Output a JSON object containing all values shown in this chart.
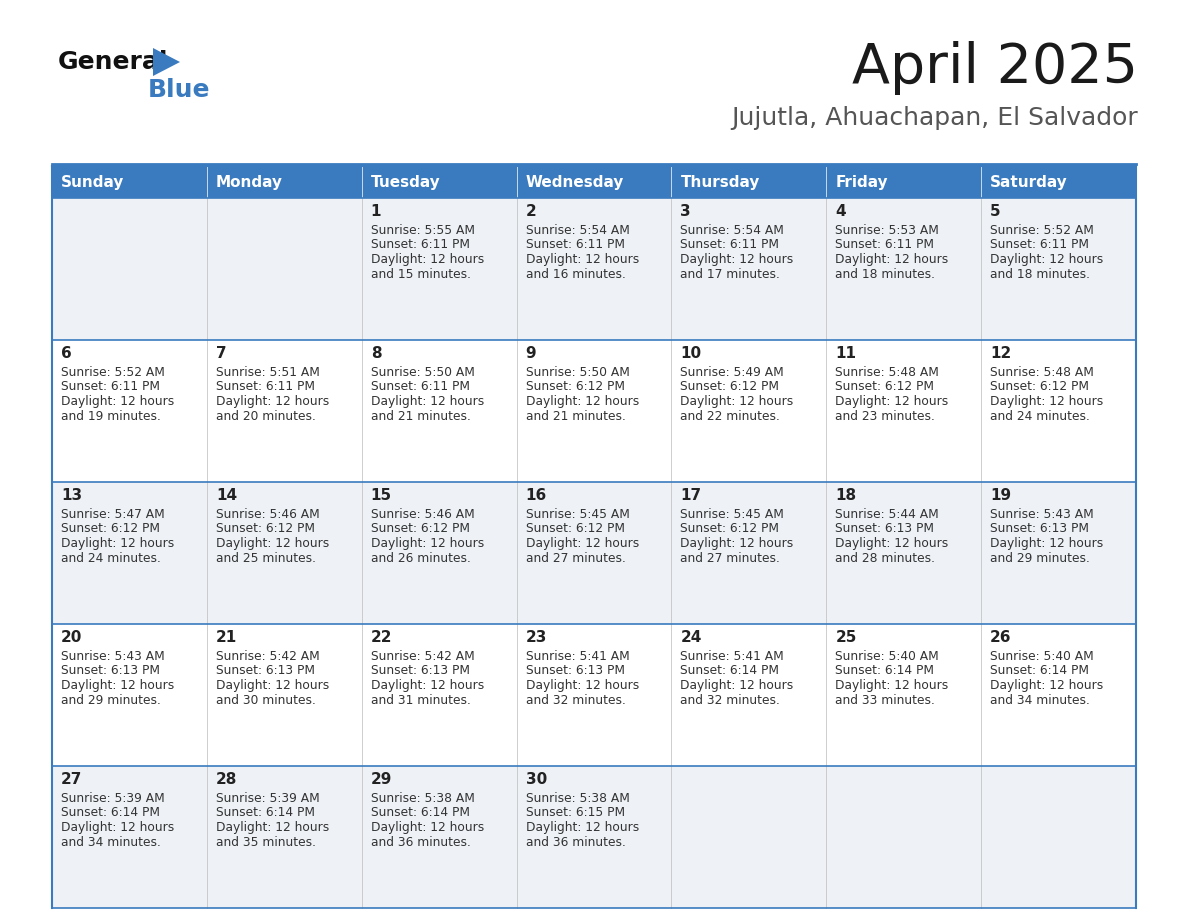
{
  "title": "April 2025",
  "subtitle": "Jujutla, Ahuachapan, El Salvador",
  "header_bg_color": "#3a7bbf",
  "header_text_color": "#ffffff",
  "cell_bg_light": "#eef2f7",
  "cell_bg_white": "#ffffff",
  "border_color": "#3a7bbf",
  "row_line_color": "#3a7bbf",
  "col_line_color": "#cccccc",
  "text_color": "#333333",
  "day_num_color": "#222222",
  "day_names": [
    "Sunday",
    "Monday",
    "Tuesday",
    "Wednesday",
    "Thursday",
    "Friday",
    "Saturday"
  ],
  "days": [
    {
      "col": 0,
      "row": 0,
      "num": "",
      "sunrise": "",
      "sunset": "",
      "daylight_min": ""
    },
    {
      "col": 1,
      "row": 0,
      "num": "",
      "sunrise": "",
      "sunset": "",
      "daylight_min": ""
    },
    {
      "col": 2,
      "row": 0,
      "num": "1",
      "sunrise": "5:55 AM",
      "sunset": "6:11 PM",
      "daylight_min": "15"
    },
    {
      "col": 3,
      "row": 0,
      "num": "2",
      "sunrise": "5:54 AM",
      "sunset": "6:11 PM",
      "daylight_min": "16"
    },
    {
      "col": 4,
      "row": 0,
      "num": "3",
      "sunrise": "5:54 AM",
      "sunset": "6:11 PM",
      "daylight_min": "17"
    },
    {
      "col": 5,
      "row": 0,
      "num": "4",
      "sunrise": "5:53 AM",
      "sunset": "6:11 PM",
      "daylight_min": "18"
    },
    {
      "col": 6,
      "row": 0,
      "num": "5",
      "sunrise": "5:52 AM",
      "sunset": "6:11 PM",
      "daylight_min": "18"
    },
    {
      "col": 0,
      "row": 1,
      "num": "6",
      "sunrise": "5:52 AM",
      "sunset": "6:11 PM",
      "daylight_min": "19"
    },
    {
      "col": 1,
      "row": 1,
      "num": "7",
      "sunrise": "5:51 AM",
      "sunset": "6:11 PM",
      "daylight_min": "20"
    },
    {
      "col": 2,
      "row": 1,
      "num": "8",
      "sunrise": "5:50 AM",
      "sunset": "6:11 PM",
      "daylight_min": "21"
    },
    {
      "col": 3,
      "row": 1,
      "num": "9",
      "sunrise": "5:50 AM",
      "sunset": "6:12 PM",
      "daylight_min": "21"
    },
    {
      "col": 4,
      "row": 1,
      "num": "10",
      "sunrise": "5:49 AM",
      "sunset": "6:12 PM",
      "daylight_min": "22"
    },
    {
      "col": 5,
      "row": 1,
      "num": "11",
      "sunrise": "5:48 AM",
      "sunset": "6:12 PM",
      "daylight_min": "23"
    },
    {
      "col": 6,
      "row": 1,
      "num": "12",
      "sunrise": "5:48 AM",
      "sunset": "6:12 PM",
      "daylight_min": "24"
    },
    {
      "col": 0,
      "row": 2,
      "num": "13",
      "sunrise": "5:47 AM",
      "sunset": "6:12 PM",
      "daylight_min": "24"
    },
    {
      "col": 1,
      "row": 2,
      "num": "14",
      "sunrise": "5:46 AM",
      "sunset": "6:12 PM",
      "daylight_min": "25"
    },
    {
      "col": 2,
      "row": 2,
      "num": "15",
      "sunrise": "5:46 AM",
      "sunset": "6:12 PM",
      "daylight_min": "26"
    },
    {
      "col": 3,
      "row": 2,
      "num": "16",
      "sunrise": "5:45 AM",
      "sunset": "6:12 PM",
      "daylight_min": "27"
    },
    {
      "col": 4,
      "row": 2,
      "num": "17",
      "sunrise": "5:45 AM",
      "sunset": "6:12 PM",
      "daylight_min": "27"
    },
    {
      "col": 5,
      "row": 2,
      "num": "18",
      "sunrise": "5:44 AM",
      "sunset": "6:13 PM",
      "daylight_min": "28"
    },
    {
      "col": 6,
      "row": 2,
      "num": "19",
      "sunrise": "5:43 AM",
      "sunset": "6:13 PM",
      "daylight_min": "29"
    },
    {
      "col": 0,
      "row": 3,
      "num": "20",
      "sunrise": "5:43 AM",
      "sunset": "6:13 PM",
      "daylight_min": "29"
    },
    {
      "col": 1,
      "row": 3,
      "num": "21",
      "sunrise": "5:42 AM",
      "sunset": "6:13 PM",
      "daylight_min": "30"
    },
    {
      "col": 2,
      "row": 3,
      "num": "22",
      "sunrise": "5:42 AM",
      "sunset": "6:13 PM",
      "daylight_min": "31"
    },
    {
      "col": 3,
      "row": 3,
      "num": "23",
      "sunrise": "5:41 AM",
      "sunset": "6:13 PM",
      "daylight_min": "32"
    },
    {
      "col": 4,
      "row": 3,
      "num": "24",
      "sunrise": "5:41 AM",
      "sunset": "6:14 PM",
      "daylight_min": "32"
    },
    {
      "col": 5,
      "row": 3,
      "num": "25",
      "sunrise": "5:40 AM",
      "sunset": "6:14 PM",
      "daylight_min": "33"
    },
    {
      "col": 6,
      "row": 3,
      "num": "26",
      "sunrise": "5:40 AM",
      "sunset": "6:14 PM",
      "daylight_min": "34"
    },
    {
      "col": 0,
      "row": 4,
      "num": "27",
      "sunrise": "5:39 AM",
      "sunset": "6:14 PM",
      "daylight_min": "34"
    },
    {
      "col": 1,
      "row": 4,
      "num": "28",
      "sunrise": "5:39 AM",
      "sunset": "6:14 PM",
      "daylight_min": "35"
    },
    {
      "col": 2,
      "row": 4,
      "num": "29",
      "sunrise": "5:38 AM",
      "sunset": "6:14 PM",
      "daylight_min": "36"
    },
    {
      "col": 3,
      "row": 4,
      "num": "30",
      "sunrise": "5:38 AM",
      "sunset": "6:15 PM",
      "daylight_min": "36"
    },
    {
      "col": 4,
      "row": 4,
      "num": "",
      "sunrise": "",
      "sunset": "",
      "daylight_min": ""
    },
    {
      "col": 5,
      "row": 4,
      "num": "",
      "sunrise": "",
      "sunset": "",
      "daylight_min": ""
    },
    {
      "col": 6,
      "row": 4,
      "num": "",
      "sunrise": "",
      "sunset": "",
      "daylight_min": ""
    }
  ]
}
